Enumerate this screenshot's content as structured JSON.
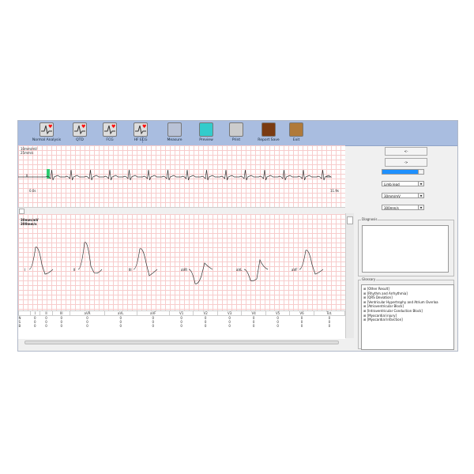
{
  "toolbar": {
    "items": [
      {
        "label": "Normal Analysis",
        "icon": "ecg-heart-icon"
      },
      {
        "label": "QTD",
        "icon": "qtd-icon"
      },
      {
        "label": "FCG",
        "icon": "fcg-icon"
      },
      {
        "label": "HF ECG",
        "icon": "hf-ecg-icon"
      },
      {
        "label": "Measure",
        "icon": "ruler-icon"
      },
      {
        "label": "Preview",
        "icon": "magnifier-icon"
      },
      {
        "label": "Print",
        "icon": "printer-icon"
      },
      {
        "label": "Report Save",
        "icon": "floppy-disk-icon"
      },
      {
        "label": "Exit",
        "icon": "exit-door-icon"
      }
    ]
  },
  "rhythm": {
    "gain": "10mm/mV",
    "speed": "25mm/s",
    "lead": "II",
    "start": "0.0s",
    "end": "11.9s"
  },
  "leads": {
    "gain": "30mm/mV",
    "speed": "300mm/s",
    "labels": [
      "I",
      "II",
      "III",
      "aVR",
      "aVL",
      "aVF"
    ]
  },
  "table": {
    "headers": [
      "",
      "I",
      "II",
      "III",
      "aVR",
      "aVL",
      "aVF",
      "V1",
      "V2",
      "V3",
      "V4",
      "V5",
      "V6",
      "Tot."
    ],
    "rows": [
      [
        "N",
        "0",
        "0",
        "0",
        "0",
        "0",
        "0",
        "0",
        "0",
        "0",
        "0",
        "0",
        "0",
        "0"
      ],
      [
        "S",
        "0",
        "0",
        "0",
        "0",
        "0",
        "0",
        "0",
        "0",
        "0",
        "0",
        "0",
        "0",
        "0"
      ],
      [
        "B",
        "0",
        "0",
        "0",
        "0",
        "0",
        "0",
        "0",
        "0",
        "0",
        "0",
        "0",
        "0",
        "0"
      ]
    ]
  },
  "right": {
    "prev": "<-",
    "next": "->",
    "selected": "",
    "lead_mode": "Limb lead",
    "gain": "30mm/mV",
    "speed": "300mm/s",
    "diagnosis_label": "Diagnosis",
    "glossary_label": "Glossary",
    "glossary": [
      "[Other Result]",
      "[Rhythm and Arrhythmia]",
      "[QRS Deviation]",
      "[Ventricular Hypertrophy and Atrium  Overloa",
      "[Atrioventricular Block]",
      "[Intraventricular Conduction Block]",
      "[Myocardial injury]",
      "[Myocardial Infarction]"
    ]
  },
  "colors": {
    "toolbar": "#a9bde0",
    "grid": "#f7cccc",
    "selection": "#1e90ff",
    "marker": "#2ecc71"
  }
}
